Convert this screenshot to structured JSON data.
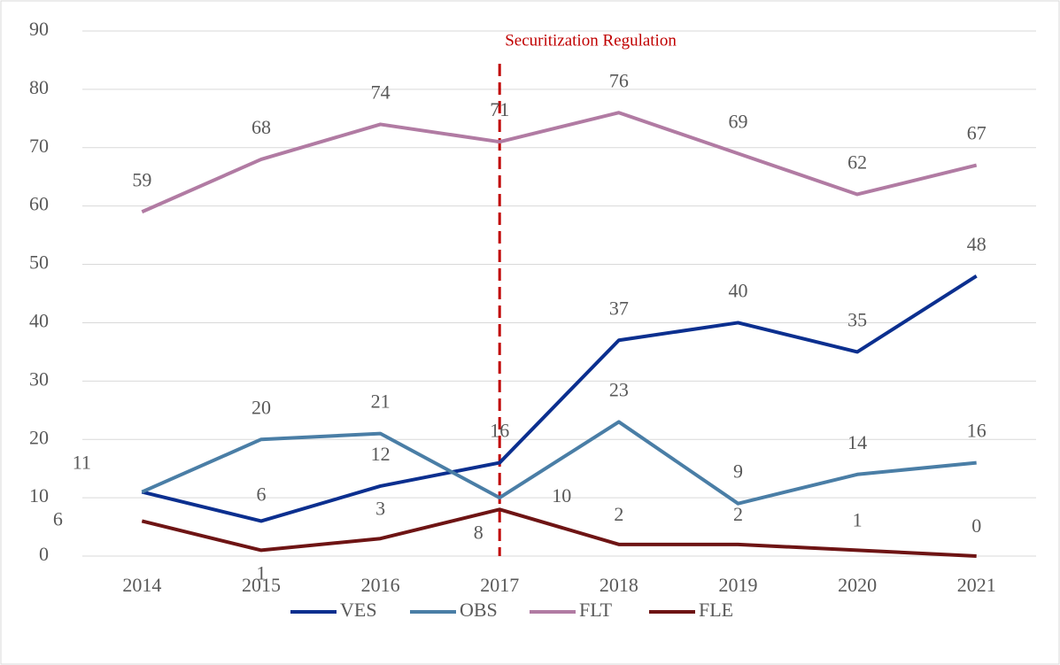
{
  "chart_data": {
    "type": "line",
    "categories": [
      "2014",
      "2015",
      "2016",
      "2017",
      "2018",
      "2019",
      "2020",
      "2021"
    ],
    "series": [
      {
        "name": "VES",
        "color": "#0b2f8f",
        "values": [
          11,
          6,
          12,
          16,
          37,
          40,
          35,
          48
        ]
      },
      {
        "name": "OBS",
        "color": "#4a7ea6",
        "values": [
          11,
          20,
          21,
          10,
          23,
          9,
          14,
          16
        ]
      },
      {
        "name": "FLT",
        "color": "#b17ba3",
        "values": [
          59,
          68,
          74,
          71,
          76,
          69,
          62,
          67
        ]
      },
      {
        "name": "FLE",
        "color": "#6e1414",
        "values": [
          6,
          1,
          3,
          8,
          2,
          2,
          1,
          0
        ]
      }
    ],
    "ylim": [
      0,
      90
    ],
    "yticks": [
      0,
      10,
      20,
      30,
      40,
      50,
      60,
      70,
      80,
      90
    ],
    "grid": true,
    "legend": "bottom",
    "annotations": [
      {
        "text": "Securitization Regulation",
        "x": "2017",
        "color": "#c00000"
      }
    ]
  }
}
